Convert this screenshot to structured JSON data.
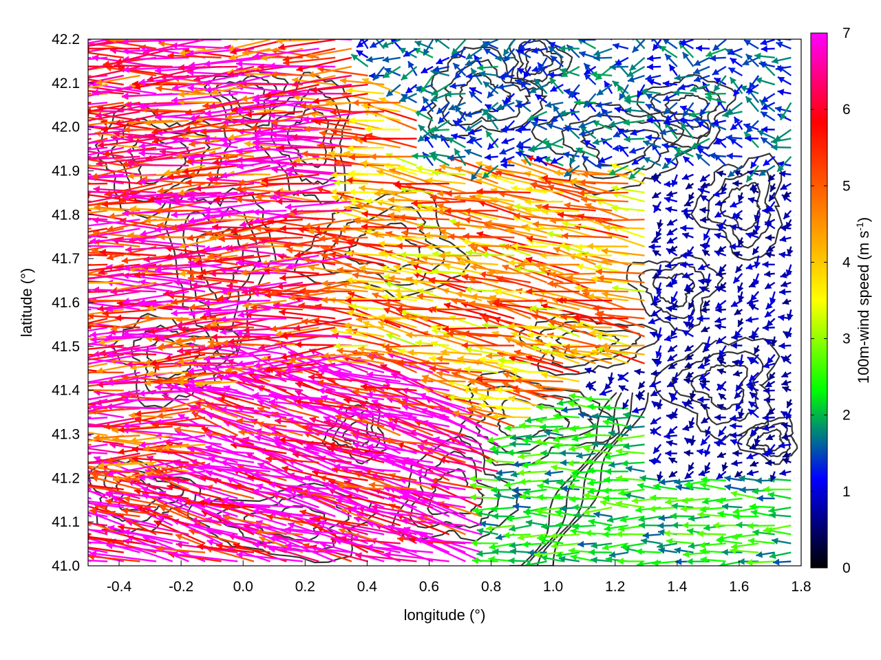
{
  "chart_data": {
    "type": "vector-field",
    "xlabel": "longitude (°)",
    "ylabel": "latitude (°)",
    "xlim": [
      -0.5,
      1.8
    ],
    "ylim": [
      41.0,
      42.2
    ],
    "xticks": [
      -0.4,
      -0.2,
      0.0,
      0.2,
      0.4,
      0.6,
      0.8,
      1.0,
      1.2,
      1.4,
      1.6,
      1.8
    ],
    "xtick_labels": [
      "-0.4",
      "-0.2",
      "0.0",
      "0.2",
      "0.4",
      "0.6",
      "0.8",
      "1.0",
      "1.2",
      "1.4",
      "1.6",
      "1.8"
    ],
    "yticks": [
      41.0,
      41.1,
      41.2,
      41.3,
      41.4,
      41.5,
      41.6,
      41.7,
      41.8,
      41.9,
      42.0,
      42.1,
      42.2
    ],
    "ytick_labels": [
      "41.0",
      "41.1",
      "41.2",
      "41.3",
      "41.4",
      "41.5",
      "41.6",
      "41.7",
      "41.8",
      "41.9",
      "42.0",
      "42.1",
      "42.2"
    ],
    "grid": true,
    "colorbar": {
      "label": "100m-wind speed (m s",
      "label_superscript": "-1",
      "label_tail": ")",
      "range": [
        0,
        7
      ],
      "ticks": [
        0,
        1,
        2,
        3,
        4,
        5,
        6,
        7
      ],
      "tick_labels": [
        "0",
        "1",
        "2",
        "3",
        "4",
        "5",
        "6",
        "7"
      ],
      "colormap": [
        "#000000",
        "#0000ff",
        "#00ff00",
        "#ffff00",
        "#ff8000",
        "#ff0000",
        "#ff00ff"
      ]
    },
    "vector_regions": [
      {
        "region": "west",
        "lon": [
          -0.5,
          0.35
        ],
        "lat": [
          41.2,
          42.2
        ],
        "direction_deg": 182,
        "speed": 6.0
      },
      {
        "region": "south-west",
        "lon": [
          -0.1,
          0.7
        ],
        "lat": [
          41.0,
          41.45
        ],
        "direction_deg": 165,
        "speed": 6.7
      },
      {
        "region": "central",
        "lon": [
          0.35,
          1.35
        ],
        "lat": [
          41.45,
          41.9
        ],
        "direction_deg": 170,
        "speed": 4.5
      },
      {
        "region": "north-east",
        "lon": [
          0.6,
          1.8
        ],
        "lat": [
          41.9,
          42.2
        ],
        "direction_deg": 180,
        "speed": 1.5
      },
      {
        "region": "east",
        "lon": [
          1.3,
          1.8
        ],
        "lat": [
          41.2,
          41.9
        ],
        "direction_deg": 200,
        "speed": 0.8
      },
      {
        "region": "south-east",
        "lon": [
          0.85,
          1.8
        ],
        "lat": [
          41.0,
          41.2
        ],
        "direction_deg": 180,
        "speed": 2.2
      }
    ],
    "contours": "terrain elevation contours (dark grey)"
  },
  "colors": {
    "contour": "#333333",
    "grid": "#b0b0b0"
  }
}
